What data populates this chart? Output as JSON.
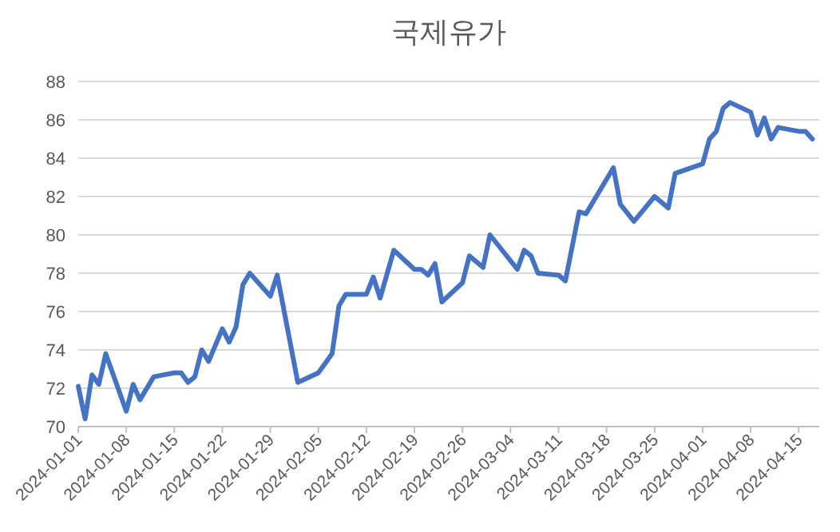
{
  "chart_data": {
    "type": "line",
    "title": "국제유가",
    "x": [
      "2024-01-01",
      "2024-01-02",
      "2024-01-03",
      "2024-01-04",
      "2024-01-05",
      "2024-01-08",
      "2024-01-09",
      "2024-01-10",
      "2024-01-12",
      "2024-01-15",
      "2024-01-16",
      "2024-01-17",
      "2024-01-18",
      "2024-01-19",
      "2024-01-20",
      "2024-01-22",
      "2024-01-23",
      "2024-01-24",
      "2024-01-25",
      "2024-01-26",
      "2024-01-29",
      "2024-01-30",
      "2024-02-02",
      "2024-02-05",
      "2024-02-07",
      "2024-02-08",
      "2024-02-09",
      "2024-02-12",
      "2024-02-13",
      "2024-02-14",
      "2024-02-16",
      "2024-02-19",
      "2024-02-20",
      "2024-02-21",
      "2024-02-22",
      "2024-02-23",
      "2024-02-26",
      "2024-02-27",
      "2024-02-29",
      "2024-03-01",
      "2024-03-05",
      "2024-03-06",
      "2024-03-07",
      "2024-03-08",
      "2024-03-11",
      "2024-03-12",
      "2024-03-14",
      "2024-03-15",
      "2024-03-19",
      "2024-03-20",
      "2024-03-22",
      "2024-03-25",
      "2024-03-27",
      "2024-03-28",
      "2024-04-01",
      "2024-04-02",
      "2024-04-03",
      "2024-04-04",
      "2024-04-05",
      "2024-04-08",
      "2024-04-09",
      "2024-04-10",
      "2024-04-11",
      "2024-04-12",
      "2024-04-15",
      "2024-04-16",
      "2024-04-17"
    ],
    "series": [
      {
        "color": "#4472c4",
        "values": [
          72.1,
          70.4,
          72.7,
          72.2,
          73.8,
          70.8,
          72.2,
          71.4,
          72.6,
          72.8,
          72.8,
          72.3,
          72.6,
          74.0,
          73.4,
          75.1,
          74.4,
          75.2,
          77.4,
          78.0,
          76.8,
          77.9,
          72.3,
          72.8,
          73.8,
          76.3,
          76.9,
          76.9,
          77.8,
          76.7,
          79.2,
          78.2,
          78.2,
          77.9,
          78.5,
          76.5,
          77.5,
          78.9,
          78.3,
          80.0,
          78.2,
          79.2,
          78.9,
          78.0,
          77.9,
          77.6,
          81.2,
          81.1,
          83.5,
          81.6,
          80.7,
          82.0,
          81.4,
          83.2,
          83.7,
          85.0,
          85.4,
          86.6,
          86.9,
          86.4,
          85.2,
          86.1,
          85.0,
          85.6,
          85.4,
          85.4,
          85.0
        ]
      }
    ],
    "xlim": [
      "2024-01-01",
      "2024-04-18"
    ],
    "xticks": [
      "2024-01-01",
      "2024-01-08",
      "2024-01-15",
      "2024-01-22",
      "2024-01-29",
      "2024-02-05",
      "2024-02-12",
      "2024-02-19",
      "2024-02-26",
      "2024-03-04",
      "2024-03-11",
      "2024-03-18",
      "2024-03-25",
      "2024-04-01",
      "2024-04-08",
      "2024-04-15"
    ],
    "ylim": [
      70,
      88
    ],
    "yticks": [
      70,
      72,
      74,
      76,
      78,
      80,
      82,
      84,
      86,
      88
    ],
    "grid": "y",
    "marker": "none",
    "line_style": "solid"
  }
}
